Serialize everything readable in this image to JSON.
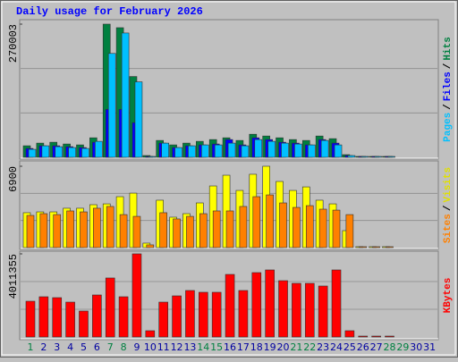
{
  "chart_data": [
    {
      "type": "bar",
      "title": "Daily usage for February 2026",
      "ylim": [
        0,
        270003
      ],
      "yticks": [
        270003
      ],
      "separator": "/",
      "series": [
        {
          "name": "Hits",
          "color": "#008040",
          "values": [
            23400,
            28800,
            30600,
            27000,
            25200,
            39600,
            270003,
            262800,
            163800,
            3600,
            34200,
            25200,
            28800,
            32400,
            36000,
            39600,
            34200,
            46800,
            43200,
            39600,
            36000,
            34200,
            43200,
            37800,
            5400,
            0,
            0,
            0,
            null,
            null,
            null
          ]
        },
        {
          "name": "Files",
          "color": "#0000ff",
          "values": [
            18000,
            23400,
            23400,
            21600,
            19800,
            30600,
            97200,
            97200,
            70200,
            1800,
            28800,
            19800,
            23400,
            25200,
            27000,
            36000,
            25200,
            39600,
            36000,
            30600,
            28800,
            25200,
            36000,
            28800,
            3600,
            0,
            0,
            0,
            null,
            null,
            null
          ]
        },
        {
          "name": "Pages",
          "color": "#00c0ff",
          "values": [
            16200,
            23400,
            21600,
            19800,
            18000,
            32400,
            210600,
            252000,
            153000,
            1800,
            28800,
            19800,
            23400,
            25200,
            25200,
            28800,
            23400,
            36000,
            32400,
            28800,
            27000,
            25200,
            34200,
            25200,
            3600,
            0,
            0,
            0,
            null,
            null,
            null
          ]
        }
      ]
    },
    {
      "type": "bar",
      "ylim": [
        0,
        6900
      ],
      "yticks": [
        6900
      ],
      "separator": "/",
      "series": [
        {
          "name": "Visits",
          "color": "#ffff00",
          "values": [
            2960,
            3030,
            3030,
            3340,
            3340,
            3640,
            3710,
            4320,
            4620,
            380,
            4020,
            2580,
            2880,
            3790,
            5230,
            6140,
            4850,
            6220,
            6900,
            5610,
            4850,
            5150,
            4020,
            3710,
            1440,
            0,
            0,
            0,
            null,
            null,
            null
          ]
        },
        {
          "name": "Sites",
          "color": "#ff8000",
          "values": [
            2730,
            2880,
            2800,
            3110,
            3030,
            3340,
            3490,
            2800,
            2650,
            230,
            2960,
            2430,
            2650,
            2880,
            3110,
            3110,
            3490,
            4320,
            4470,
            3790,
            3410,
            3560,
            3260,
            3180,
            2800,
            0,
            0,
            0,
            null,
            null,
            null
          ]
        }
      ]
    },
    {
      "type": "bar",
      "ylim": [
        0,
        4011355
      ],
      "yticks": [
        4011355
      ],
      "categories": [
        "1",
        "2",
        "3",
        "4",
        "5",
        "6",
        "7",
        "8",
        "9",
        "10",
        "11",
        "12",
        "13",
        "14",
        "15",
        "16",
        "17",
        "18",
        "19",
        "20",
        "21",
        "22",
        "23",
        "24",
        "25",
        "26",
        "27",
        "28",
        "29",
        "30",
        "31"
      ],
      "category_colors": [
        "#008040",
        "#0000a0",
        "#0000a0",
        "#0000a0",
        "#0000a0",
        "#0000a0",
        "#008040",
        "#008040",
        "#0000a0",
        "#0000a0",
        "#0000a0",
        "#0000a0",
        "#0000a0",
        "#008040",
        "#008040",
        "#0000a0",
        "#0000a0",
        "#0000a0",
        "#0000a0",
        "#0000a0",
        "#008040",
        "#008040",
        "#0000a0",
        "#0000a0",
        "#0000a0",
        "#0000a0",
        "#0000a0",
        "#008040",
        "#008040",
        "#0000a0",
        "#0000a0"
      ],
      "series": [
        {
          "name": "KBytes",
          "color": "#ff0000",
          "values": [
            1725000,
            1941000,
            1898000,
            1682000,
            1251000,
            2027000,
            2847000,
            1941000,
            4011355,
            302000,
            1682000,
            1984000,
            2243000,
            2157000,
            2157000,
            3019000,
            2243000,
            3106000,
            3235000,
            2717000,
            2588000,
            2588000,
            2459000,
            3235000,
            302000,
            0,
            0,
            0,
            null,
            null,
            null
          ]
        }
      ]
    }
  ]
}
